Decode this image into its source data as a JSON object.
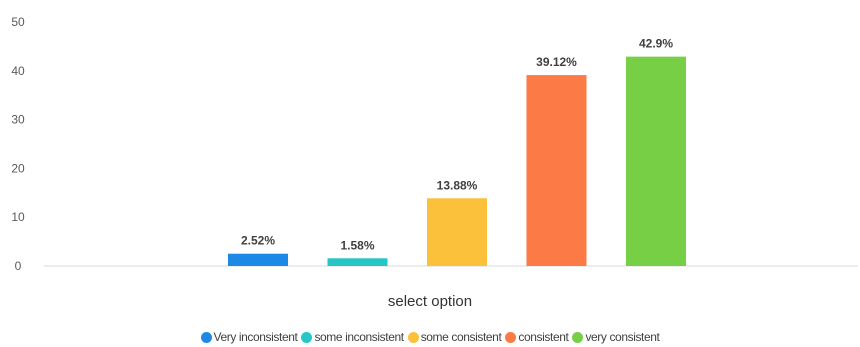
{
  "chart_data": {
    "type": "bar",
    "categories": [
      "Very inconsistent",
      "some inconsistent",
      "some consistent",
      "consistent",
      "very consistent"
    ],
    "values": [
      2.52,
      1.58,
      13.88,
      39.12,
      42.9
    ],
    "data_labels": [
      "2.52%",
      "1.58%",
      "13.88%",
      "39.12%",
      "42.9%"
    ],
    "colors": [
      "#1e88e5",
      "#26c6c6",
      "#fcc13b",
      "#fb7a45",
      "#76cf45"
    ],
    "title": "",
    "xlabel": "select option",
    "ylabel": "",
    "ylim": [
      0,
      50
    ],
    "yticks": [
      0,
      10,
      20,
      30,
      40,
      50
    ],
    "grid": false,
    "legend_position": "bottom"
  },
  "legend": {
    "items": [
      "Very inconsistent",
      "some inconsistent",
      "some consistent",
      "consistent",
      "very consistent"
    ]
  }
}
